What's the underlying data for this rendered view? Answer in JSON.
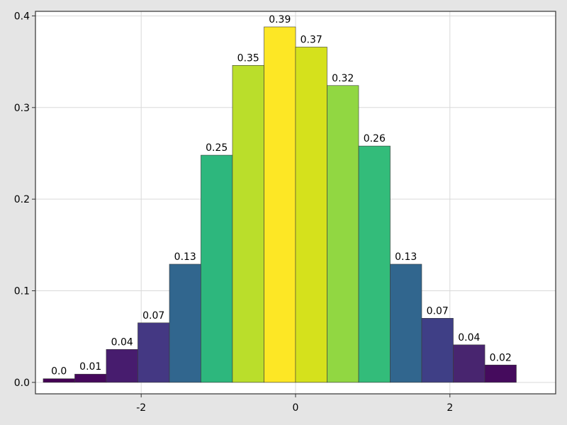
{
  "chart_data": {
    "type": "bar",
    "title": "",
    "xlabel": "",
    "ylabel": "",
    "xlim": [
      -3.37,
      3.37
    ],
    "ylim": [
      -0.0125,
      0.405
    ],
    "x_ticks": [
      -2,
      0,
      2
    ],
    "x_tick_labels": [
      "-2",
      "0",
      "2"
    ],
    "y_ticks": [
      0.0,
      0.1,
      0.2,
      0.3,
      0.4
    ],
    "y_tick_labels": [
      "0.0",
      "0.1",
      "0.2",
      "0.3",
      "0.4"
    ],
    "grid": true,
    "bin_width": 0.4087,
    "bars": [
      {
        "x": -3.065,
        "value": 0.004,
        "label": "0.0",
        "color": "#440154"
      },
      {
        "x": -2.656,
        "value": 0.009,
        "label": "0.01",
        "color": "#46085c"
      },
      {
        "x": -2.248,
        "value": 0.036,
        "label": "0.04",
        "color": "#471c6e"
      },
      {
        "x": -1.839,
        "value": 0.065,
        "label": "0.07",
        "color": "#443883"
      },
      {
        "x": -1.43,
        "value": 0.129,
        "label": "0.13",
        "color": "#31668e"
      },
      {
        "x": -1.022,
        "value": 0.248,
        "label": "0.25",
        "color": "#2db77d"
      },
      {
        "x": -0.613,
        "value": 0.346,
        "label": "0.35",
        "color": "#bade2b"
      },
      {
        "x": -0.204,
        "value": 0.388,
        "label": "0.39",
        "color": "#fde725"
      },
      {
        "x": 0.204,
        "value": 0.366,
        "label": "0.37",
        "color": "#d5e11c"
      },
      {
        "x": 0.613,
        "value": 0.324,
        "label": "0.32",
        "color": "#91d742"
      },
      {
        "x": 1.022,
        "value": 0.258,
        "label": "0.26",
        "color": "#33bc7a"
      },
      {
        "x": 1.43,
        "value": 0.129,
        "label": "0.13",
        "color": "#31668e"
      },
      {
        "x": 1.839,
        "value": 0.07,
        "label": "0.07",
        "color": "#3f3f86"
      },
      {
        "x": 2.248,
        "value": 0.041,
        "label": "0.04",
        "color": "#48256f"
      },
      {
        "x": 2.656,
        "value": 0.019,
        "label": "0.02",
        "color": "#450b5d"
      }
    ]
  }
}
